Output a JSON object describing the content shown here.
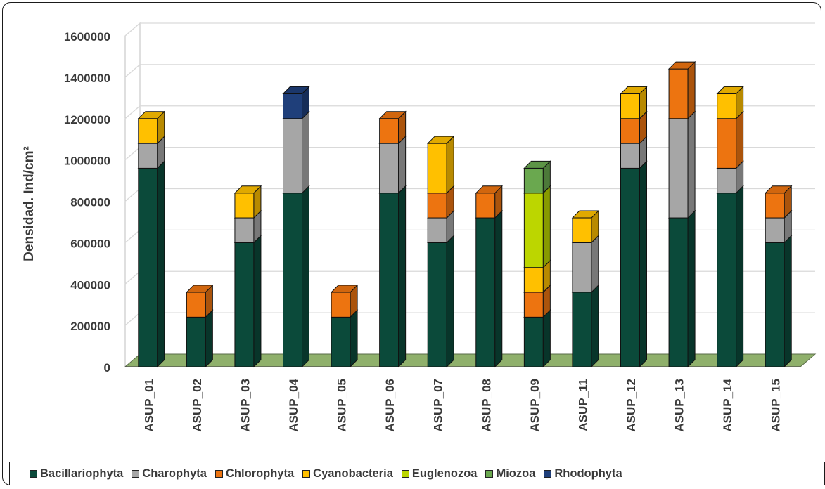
{
  "chart_data": {
    "type": "bar",
    "stacked": true,
    "three_d": true,
    "title": "",
    "xlabel": "",
    "ylabel": "Densidad. Ind/cm²",
    "ylim": [
      0,
      1600000
    ],
    "yticks": [
      "0",
      "200000",
      "400000",
      "600000",
      "800000",
      "1000000",
      "1200000",
      "1400000",
      "1600000"
    ],
    "grid": true,
    "legend_position": "bottom",
    "categories": [
      "ASUP_01",
      "ASUP_02",
      "ASUP_03",
      "ASUP_04",
      "ASUP_05",
      "ASUP_06",
      "ASUP_07",
      "ASUP_08",
      "ASUP_09",
      "ASUP_11",
      "ASUP_12",
      "ASUP_13",
      "ASUP_14",
      "ASUP_15"
    ],
    "series": [
      {
        "name": "Bacillariophyta",
        "color": "#0b4a3a",
        "values": [
          960000,
          240000,
          600000,
          840000,
          240000,
          840000,
          600000,
          720000,
          240000,
          360000,
          960000,
          720000,
          840000,
          600000
        ]
      },
      {
        "name": "Charophyta",
        "color": "#a6a6a6",
        "values": [
          120000,
          0,
          120000,
          360000,
          0,
          240000,
          120000,
          0,
          0,
          240000,
          120000,
          480000,
          120000,
          120000
        ]
      },
      {
        "name": "Chlorophyta",
        "color": "#ed7410",
        "values": [
          0,
          120000,
          0,
          0,
          120000,
          120000,
          120000,
          120000,
          120000,
          0,
          120000,
          240000,
          240000,
          120000
        ]
      },
      {
        "name": "Cyanobacteria",
        "color": "#ffc000",
        "values": [
          120000,
          0,
          120000,
          0,
          0,
          0,
          240000,
          0,
          120000,
          120000,
          120000,
          0,
          120000,
          0
        ]
      },
      {
        "name": "Euglenozoa",
        "color": "#bcd600",
        "values": [
          0,
          0,
          0,
          0,
          0,
          0,
          0,
          0,
          360000,
          0,
          0,
          0,
          0,
          0
        ]
      },
      {
        "name": "Miozoa",
        "color": "#6aa84f",
        "values": [
          0,
          0,
          0,
          0,
          0,
          0,
          0,
          0,
          120000,
          0,
          0,
          0,
          0,
          0
        ]
      },
      {
        "name": "Rhodophyta",
        "color": "#1f3f7a",
        "values": [
          0,
          0,
          0,
          120000,
          0,
          0,
          0,
          0,
          0,
          0,
          0,
          0,
          0,
          0
        ]
      }
    ]
  }
}
